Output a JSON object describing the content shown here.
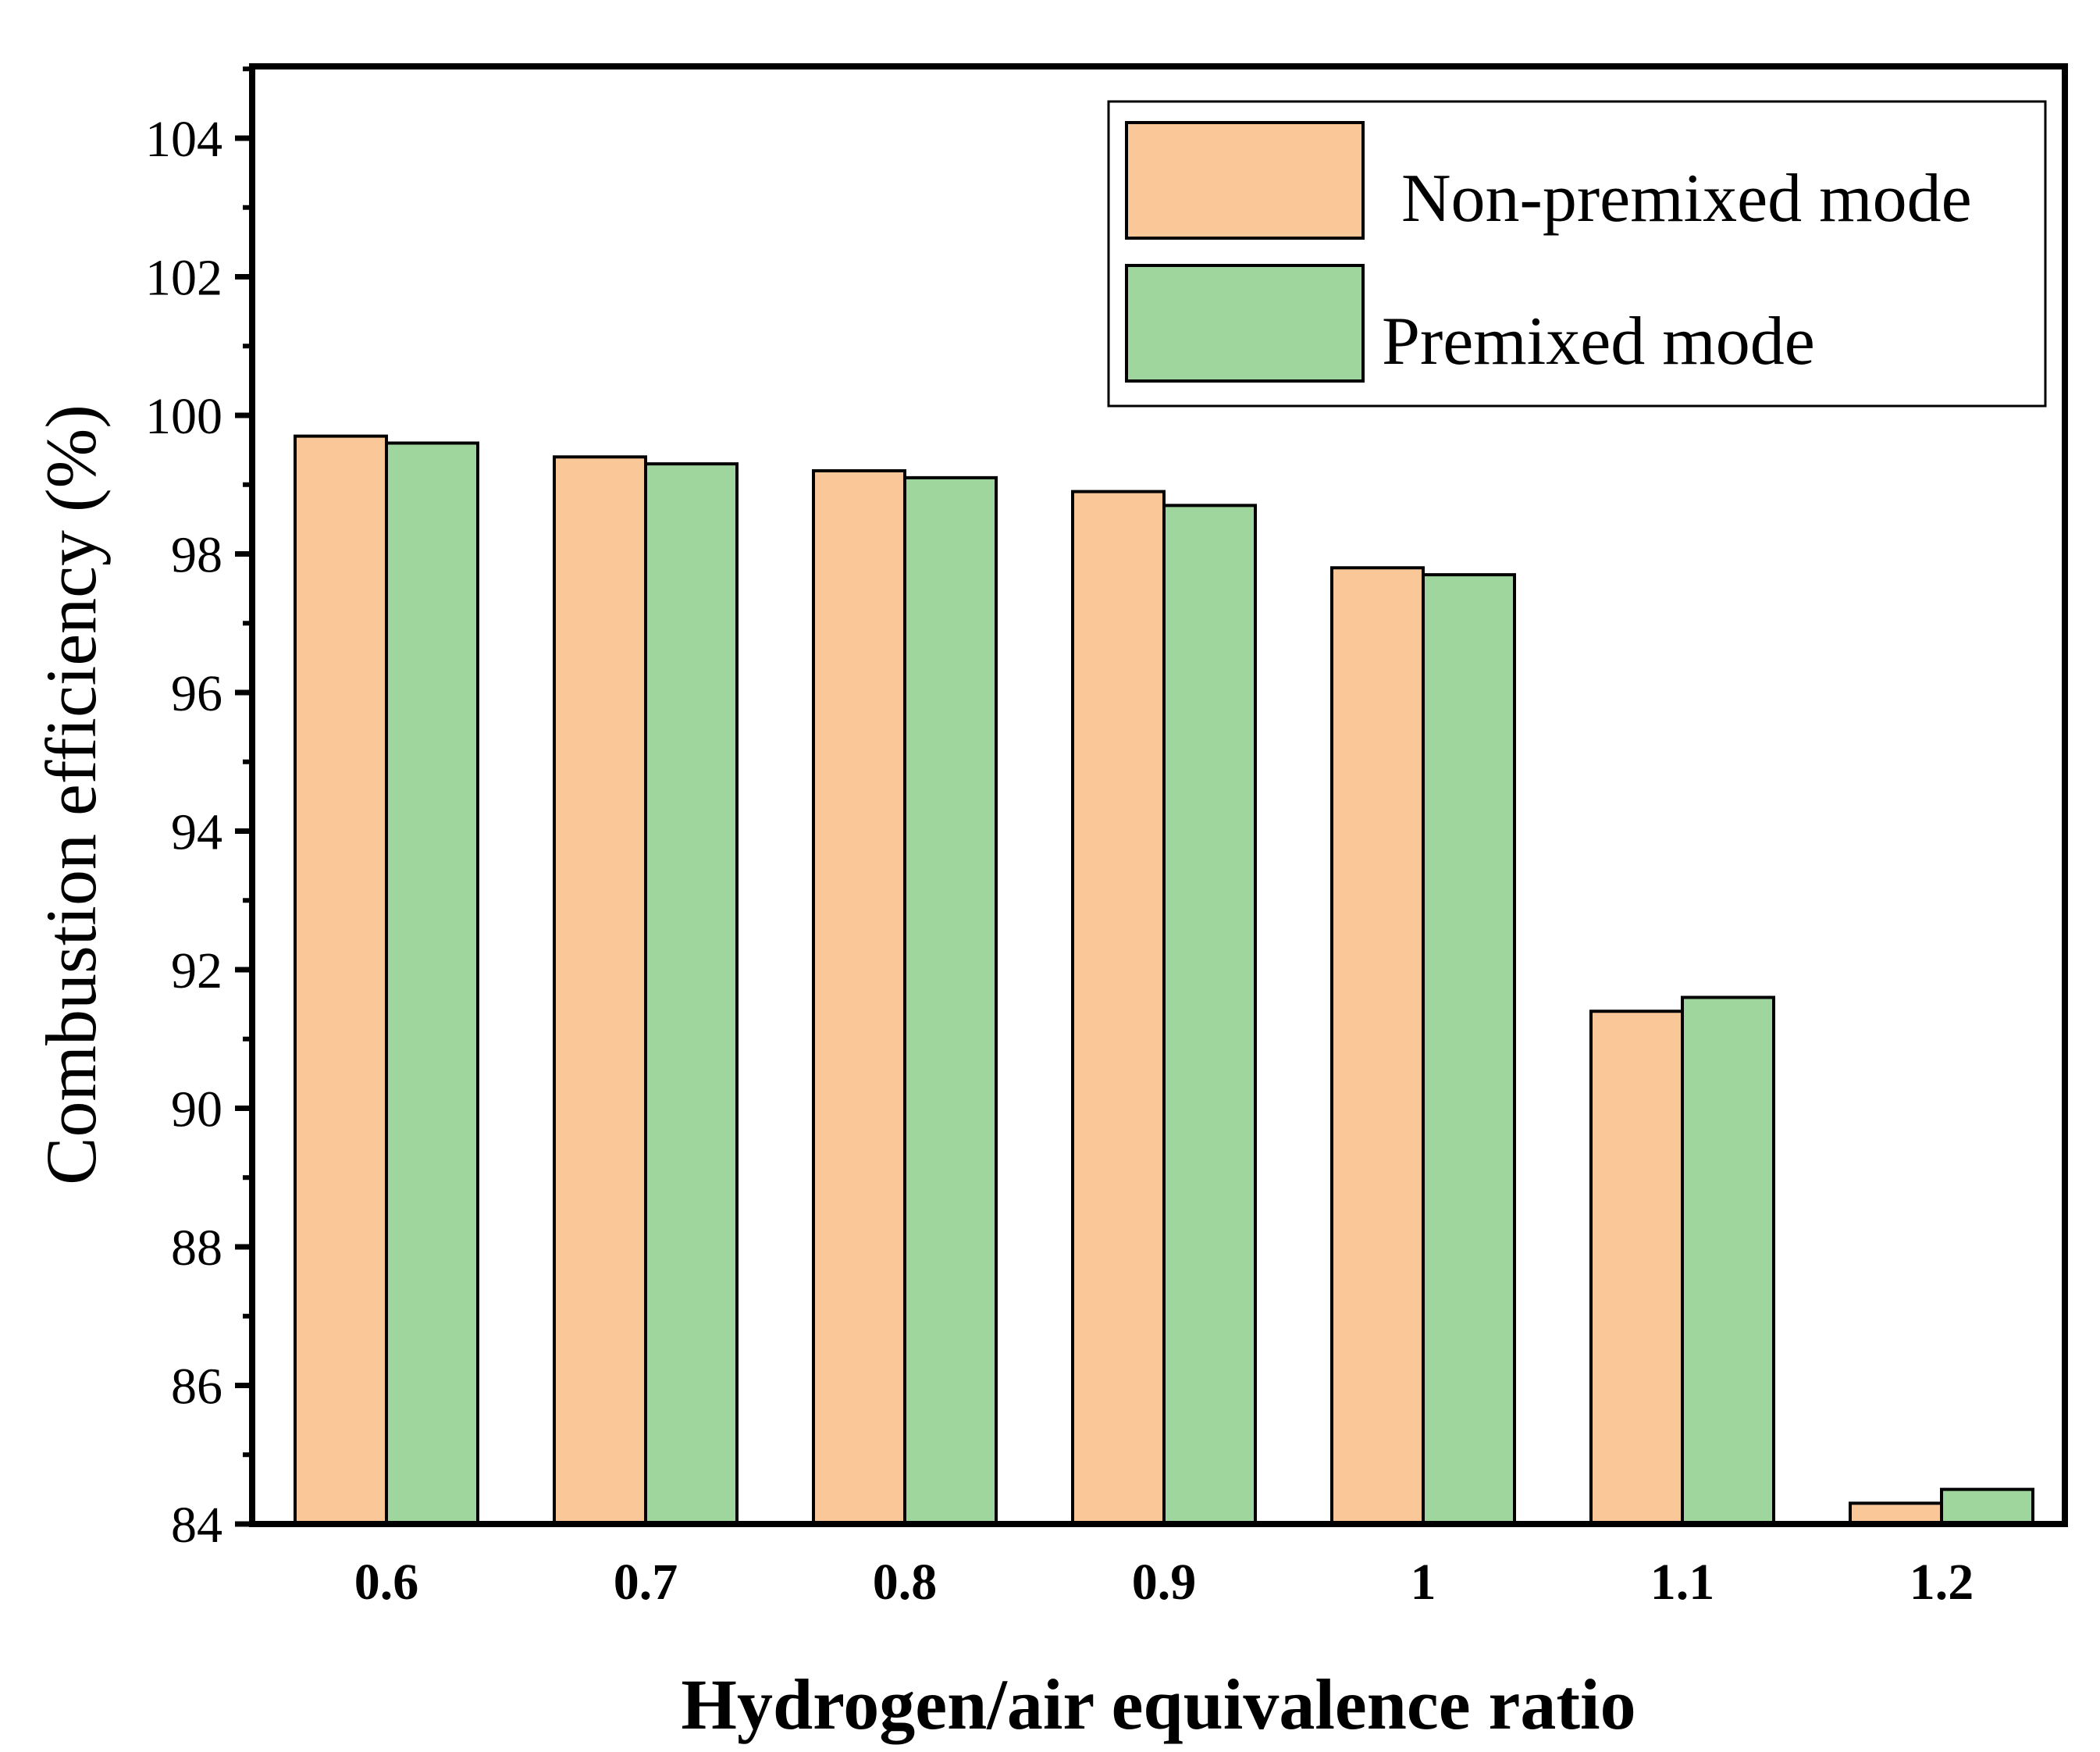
{
  "chart_data": {
    "type": "bar",
    "title": "",
    "xlabel": "Hydrogen/air equivalence ratio",
    "ylabel": "Combustion efficiency (%)",
    "categories": [
      "0.6",
      "0.7",
      "0.8",
      "0.9",
      "1",
      "1.1",
      "1.2"
    ],
    "ylim": [
      84,
      105
    ],
    "yticks": [
      84,
      86,
      88,
      90,
      92,
      94,
      96,
      98,
      100,
      102,
      104
    ],
    "ytick_labels": [
      "84",
      "86",
      "88",
      "90",
      "92",
      "94",
      "96",
      "98",
      "100",
      "102",
      "104"
    ],
    "grid": false,
    "legend_position": "top-right",
    "series": [
      {
        "name": "Non-premixed mode",
        "color": "#FAC898",
        "values": [
          99.7,
          99.4,
          99.2,
          98.9,
          97.8,
          91.4,
          84.3
        ]
      },
      {
        "name": "Premixed mode",
        "color": "#9ED69E",
        "values": [
          99.6,
          99.3,
          99.1,
          98.7,
          97.7,
          91.6,
          84.5
        ]
      }
    ]
  }
}
